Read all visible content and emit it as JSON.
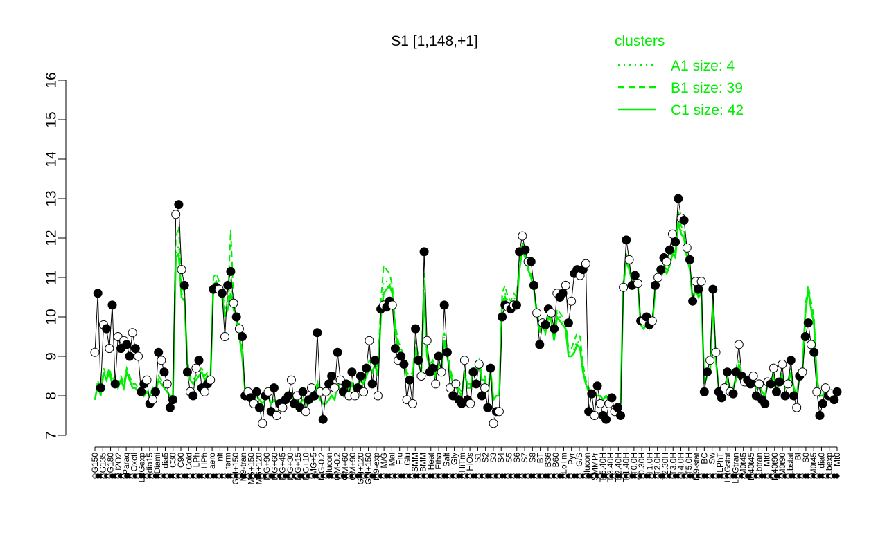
{
  "chart_data": {
    "type": "line",
    "title": "S1 [1,148,+1]",
    "xlabel": "",
    "ylabel": "",
    "ylim": [
      7,
      16
    ],
    "yticks": [
      7,
      8,
      9,
      10,
      11,
      12,
      13,
      14,
      15,
      16
    ],
    "grid": false,
    "legend": {
      "title": "clusters",
      "placement": "top-right",
      "entries": [
        {
          "label": "A1 size: 4",
          "style": "dotted"
        },
        {
          "label": "B1 size: 39",
          "style": "dashed"
        },
        {
          "label": "C1 size: 42",
          "style": "solid"
        }
      ]
    },
    "x_tick_labels": [
      "G150",
      "G135",
      "G180",
      "H2O2",
      "Paraq",
      "Oxctl",
      "LBGexp",
      "dia15",
      "Diami",
      "dia5",
      "C30",
      "C90",
      "Cold",
      "LPh",
      "HPh",
      "aero",
      "nit",
      "ferm",
      "GM+150",
      "M9-tran",
      "MG+150",
      "MG+120",
      "MG+90",
      "MG+60",
      "MG+45",
      "MG+30",
      "MG+15",
      "MG+10",
      "MG+5",
      "MG-0.2",
      "Glucon",
      "GM-0.2",
      "GM+60",
      "GM+90",
      "GM+120",
      "GM+150",
      "M9-exp",
      "M/G",
      "Mal",
      "Fru",
      "Glu",
      "SMM",
      "BMM",
      "Heat",
      "Etha",
      "Salt",
      "Gly",
      "HiTm",
      "HiOs",
      "S1",
      "S2",
      "S3",
      "S4",
      "S5",
      "S6",
      "S7",
      "S8",
      "BT",
      "B36",
      "B60",
      "LoTm",
      "Pyr",
      "G/S",
      "Glucon",
      "SMMPr",
      "T-5.40H",
      "T-3.40H",
      "T-2.40H",
      "T-1.40H",
      "T0.0H",
      "T0.30H",
      "T1.0H",
      "T2.0H",
      "T2.30H",
      "T3.0H",
      "T4.0H",
      "T5.0H",
      "M9-stat",
      "BC",
      "Sw",
      "LPhT",
      "LBGstat",
      "LBGtran",
      "M0t45",
      "M40t45",
      "Lbtran",
      "Mt0",
      "M40t90",
      "M0t90",
      "Lbstat",
      "BI",
      "S0",
      "M0t45",
      "dia0",
      "Lbexp",
      "Mt0"
    ],
    "series": [
      {
        "marker": "circles",
        "values": [
          9.1,
          10.6,
          8.2,
          9.8,
          9.7,
          9.2,
          10.3,
          8.3,
          9.5,
          9.2,
          9.4,
          9.3,
          9.0,
          9.6,
          9.2,
          9.0,
          8.1,
          8.3,
          8.4,
          7.8,
          7.9,
          8.1,
          9.1,
          8.9,
          8.6,
          8.3,
          7.7,
          7.9,
          12.6,
          12.85,
          11.2,
          10.8,
          8.6,
          8.1,
          8.0,
          8.7,
          8.9,
          8.2,
          8.1,
          8.3,
          8.4,
          10.7,
          10.75,
          10.7,
          10.6,
          9.5,
          10.8,
          11.15,
          10.35,
          10.0,
          9.7,
          9.5,
          8.0,
          8.1,
          7.95,
          7.8,
          8.1,
          7.7,
          7.3,
          8.0,
          8.1,
          7.6,
          8.2,
          7.5,
          7.8,
          7.7,
          7.9,
          8.0,
          8.4,
          7.8,
          8.0,
          7.7,
          8.1,
          7.6,
          7.9,
          8.2,
          8.0,
          9.6,
          8.1,
          7.4,
          8.1,
          8.3,
          8.5,
          8.2,
          9.1,
          8.4,
          8.1,
          8.3,
          8.0,
          8.6,
          8.0,
          8.2,
          8.5,
          8.1,
          8.7,
          9.4,
          8.3,
          8.9,
          8.0,
          10.2,
          10.3,
          10.25,
          10.4,
          10.3,
          9.2,
          8.9,
          9.0,
          8.8,
          7.9,
          8.4,
          7.8,
          9.7,
          8.9,
          8.5,
          11.65,
          9.4,
          8.6,
          8.7,
          8.3,
          9.0,
          8.6,
          10.3,
          9.1,
          8.2,
          8.0,
          8.3,
          7.9,
          7.8,
          8.9,
          7.9,
          7.8,
          8.6,
          8.3,
          8.8,
          8.0,
          8.2,
          7.7,
          8.7,
          7.3,
          7.6,
          7.6,
          10.0,
          10.3,
          10.25,
          10.2,
          10.3,
          10.3,
          11.65,
          12.05,
          11.7,
          11.4,
          11.4,
          10.8,
          10.1,
          9.3,
          9.85,
          9.8,
          10.2,
          10.1,
          9.7,
          10.6,
          10.5,
          10.6,
          10.8,
          9.85,
          10.4,
          11.1,
          11.2,
          11.05,
          11.2,
          11.35,
          7.6,
          8.05,
          7.5,
          8.25,
          7.8,
          7.5,
          7.4,
          7.8,
          7.95,
          7.6,
          7.7,
          7.5,
          10.75,
          11.95,
          11.45,
          10.8,
          11.05,
          10.85,
          9.9,
          9.9,
          10.0,
          9.8,
          9.9,
          10.8,
          11.0,
          11.2,
          11.5,
          11.4,
          11.7,
          12.1,
          11.9,
          13.0,
          12.5,
          12.45,
          11.75,
          11.45,
          10.4,
          10.9,
          10.7,
          10.9,
          8.1,
          8.6,
          8.9,
          10.7,
          9.1,
          8.1,
          7.95,
          8.2,
          8.6,
          8.1,
          8.05,
          8.6,
          9.3,
          8.5,
          8.35,
          8.4,
          8.3,
          8.5,
          8.0,
          8.3,
          7.9,
          7.8,
          8.35,
          8.3,
          8.7,
          8.1,
          8.35,
          8.8,
          8.0,
          8.3,
          8.9,
          8.0,
          7.7,
          8.5,
          8.6,
          9.5,
          9.85,
          9.3,
          9.1,
          8.1,
          7.5,
          7.8,
          8.2,
          8.0,
          8.05,
          7.9,
          8.1
        ]
      },
      {
        "name": "",
        "style": "solid",
        "values": [
          7.9,
          8.3,
          8.0,
          8.6,
          8.4,
          8.6,
          8.3,
          8.4,
          8.2,
          8.4,
          8.2,
          8.6,
          8.4,
          8.2,
          8.2,
          8.1,
          8.2,
          8.0,
          8.1,
          8.0,
          8.2,
          8.1,
          8.4,
          8.3,
          8.2,
          8.1,
          8.0,
          8.0,
          11.5,
          11.6,
          10.5,
          10.4,
          8.8,
          8.4,
          8.3,
          8.4,
          8.5,
          8.6,
          8.4,
          8.5,
          8.4,
          10.8,
          10.9,
          10.7,
          10.5,
          10.0,
          10.2,
          10.6,
          10.2,
          9.9,
          9.5,
          9.0,
          8.1,
          8.0,
          8.0,
          8.0,
          8.0,
          7.9,
          7.8,
          7.9,
          8.0,
          7.8,
          7.9,
          7.8,
          7.8,
          7.8,
          7.9,
          7.9,
          8.0,
          7.8,
          7.9,
          7.8,
          7.9,
          7.8,
          7.8,
          7.9,
          7.9,
          8.3,
          7.9,
          7.8,
          7.8,
          7.9,
          8.0,
          7.9,
          8.3,
          8.1,
          8.0,
          8.2,
          8.1,
          8.3,
          8.1,
          8.2,
          8.4,
          8.3,
          8.5,
          8.7,
          8.6,
          8.8,
          8.5,
          10.0,
          10.6,
          10.7,
          10.8,
          10.6,
          9.6,
          9.2,
          9.0,
          8.9,
          8.5,
          8.4,
          8.5,
          9.2,
          8.8,
          8.6,
          10.6,
          9.0,
          8.7,
          8.8,
          8.5,
          8.7,
          8.6,
          9.4,
          9.0,
          8.6,
          8.3,
          8.3,
          8.1,
          8.0,
          8.6,
          8.2,
          8.2,
          8.6,
          8.6,
          8.8,
          8.4,
          8.4,
          8.1,
          8.6,
          7.9,
          8.0,
          8.0,
          10.4,
          10.5,
          10.3,
          10.2,
          10.4,
          10.3,
          11.2,
          11.7,
          11.5,
          11.2,
          11.0,
          10.7,
          10.1,
          9.6,
          9.8,
          9.6,
          10.0,
          9.9,
          9.4,
          10.0,
          9.9,
          9.8,
          9.7,
          9.0,
          9.0,
          9.1,
          9.3,
          9.2,
          8.6,
          8.3,
          8.1,
          8.1,
          8.0,
          8.0,
          8.0,
          7.9,
          8.0,
          7.9,
          7.8,
          7.7,
          7.7,
          7.8,
          10.8,
          11.4,
          11.2,
          10.9,
          11.0,
          10.8,
          9.8,
          9.7,
          9.8,
          9.7,
          9.8,
          10.7,
          10.9,
          11.0,
          11.2,
          11.1,
          11.3,
          11.6,
          11.5,
          12.4,
          12.1,
          12.0,
          11.5,
          11.2,
          10.4,
          10.7,
          10.5,
          10.6,
          8.3,
          8.5,
          8.6,
          10.4,
          8.9,
          8.2,
          8.1,
          8.2,
          8.4,
          8.2,
          8.2,
          8.4,
          8.8,
          8.4,
          8.3,
          8.3,
          8.3,
          8.4,
          8.2,
          8.3,
          8.1,
          8.0,
          8.3,
          8.3,
          8.5,
          8.2,
          8.3,
          8.5,
          8.2,
          8.3,
          8.6,
          8.2,
          8.0,
          8.5,
          8.6,
          10.1,
          10.7,
          10.2,
          9.8,
          8.4,
          8.0,
          8.0,
          8.2,
          8.0,
          8.0,
          8.0,
          8.0
        ]
      },
      {
        "name": "",
        "style": "dashed",
        "values": [
          7.9,
          8.4,
          8.0,
          8.7,
          8.5,
          8.7,
          8.4,
          8.5,
          8.3,
          8.5,
          8.3,
          8.7,
          8.5,
          8.3,
          8.3,
          8.2,
          8.2,
          8.1,
          8.1,
          8.0,
          8.2,
          8.1,
          8.5,
          8.4,
          8.2,
          8.1,
          8.0,
          8.0,
          12.0,
          12.3,
          10.8,
          10.6,
          8.9,
          8.5,
          8.4,
          8.5,
          8.6,
          8.7,
          8.5,
          8.6,
          8.4,
          11.0,
          11.1,
          10.9,
          10.7,
          10.2,
          10.4,
          12.2,
          10.5,
          10.1,
          9.8,
          9.2,
          8.1,
          8.0,
          8.0,
          8.0,
          8.0,
          7.9,
          7.8,
          7.9,
          8.0,
          7.8,
          7.9,
          7.8,
          7.8,
          7.8,
          7.9,
          7.9,
          8.0,
          7.8,
          7.9,
          7.8,
          7.9,
          7.8,
          7.8,
          7.9,
          7.9,
          8.4,
          7.9,
          7.8,
          7.8,
          7.9,
          8.0,
          7.9,
          8.4,
          8.2,
          8.0,
          8.3,
          8.1,
          8.4,
          8.2,
          8.3,
          8.5,
          8.4,
          8.7,
          8.9,
          8.8,
          9.0,
          8.7,
          10.4,
          11.3,
          11.2,
          11.1,
          10.8,
          9.8,
          9.4,
          9.2,
          9.0,
          8.6,
          8.5,
          8.6,
          9.4,
          9.0,
          8.7,
          11.1,
          9.2,
          8.8,
          8.9,
          8.6,
          8.8,
          8.7,
          9.6,
          9.2,
          8.7,
          8.4,
          8.4,
          8.2,
          8.1,
          8.7,
          8.3,
          8.3,
          8.7,
          8.7,
          8.9,
          8.5,
          8.5,
          8.2,
          8.7,
          7.9,
          8.0,
          8.0,
          10.6,
          10.8,
          10.5,
          10.4,
          10.6,
          10.5,
          11.4,
          11.9,
          11.6,
          11.3,
          11.1,
          10.8,
          10.2,
          9.7,
          9.9,
          9.7,
          10.1,
          10.0,
          9.5,
          10.2,
          10.1,
          10.0,
          9.9,
          9.2,
          9.2,
          9.4,
          9.6,
          9.5,
          8.8,
          8.4,
          8.2,
          8.1,
          8.0,
          8.0,
          8.0,
          7.9,
          8.0,
          7.9,
          7.8,
          7.7,
          7.7,
          7.8,
          10.9,
          11.6,
          11.3,
          11.0,
          11.1,
          10.9,
          9.9,
          9.8,
          9.9,
          9.8,
          9.9,
          10.8,
          11.0,
          11.1,
          11.3,
          11.2,
          11.4,
          11.8,
          11.6,
          12.7,
          12.3,
          12.2,
          11.6,
          11.3,
          10.5,
          10.8,
          10.6,
          10.7,
          8.3,
          8.6,
          8.7,
          10.6,
          9.0,
          8.2,
          8.1,
          8.2,
          8.5,
          8.2,
          8.2,
          8.5,
          8.9,
          8.5,
          8.3,
          8.4,
          8.3,
          8.5,
          8.2,
          8.3,
          8.1,
          8.0,
          8.4,
          8.3,
          8.6,
          8.2,
          8.4,
          8.6,
          8.2,
          8.4,
          8.7,
          8.2,
          8.0,
          8.6,
          8.7,
          10.3,
          10.8,
          10.4,
          10.0,
          8.5,
          8.0,
          8.1,
          8.2,
          8.0,
          8.0,
          8.0,
          8.0
        ]
      },
      {
        "name": "",
        "style": "dotted",
        "values": [
          7.9,
          8.3,
          8.0,
          8.6,
          8.4,
          8.6,
          8.3,
          8.4,
          8.2,
          8.4,
          8.2,
          8.6,
          8.4,
          8.2,
          8.2,
          8.1,
          8.2,
          8.0,
          8.1,
          8.0,
          8.2,
          8.1,
          8.4,
          8.3,
          8.2,
          8.1,
          8.0,
          8.0,
          11.6,
          11.8,
          10.6,
          10.5,
          8.8,
          8.4,
          8.3,
          8.4,
          8.5,
          8.6,
          8.4,
          8.5,
          8.4,
          10.9,
          10.9,
          10.8,
          10.6,
          10.1,
          10.3,
          11.0,
          10.3,
          10.0,
          9.6,
          9.1,
          8.1,
          8.0,
          8.0,
          8.0,
          8.0,
          7.9,
          7.8,
          7.9,
          8.0,
          7.8,
          7.9,
          7.8,
          7.8,
          7.8,
          7.9,
          7.9,
          8.0,
          7.8,
          7.9,
          7.8,
          7.9,
          7.8,
          7.8,
          7.9,
          7.9,
          8.3,
          7.9,
          7.8,
          7.8,
          7.9,
          8.0,
          7.9,
          8.3,
          8.1,
          8.0,
          8.2,
          8.1,
          8.3,
          8.1,
          8.2,
          8.4,
          8.3,
          8.6,
          8.8,
          8.7,
          8.9,
          8.6,
          10.2,
          10.9,
          10.9,
          10.9,
          10.7,
          9.7,
          9.3,
          9.1,
          8.9,
          8.5,
          8.4,
          8.5,
          9.3,
          8.9,
          8.6,
          10.8,
          9.1,
          8.7,
          8.8,
          8.5,
          8.7,
          8.6,
          9.5,
          9.1,
          8.6,
          8.3,
          8.3,
          8.1,
          8.0,
          8.6,
          8.2,
          8.2,
          8.6,
          8.6,
          8.8,
          8.4,
          8.4,
          8.1,
          8.6,
          7.9,
          8.0,
          8.0,
          10.5,
          10.6,
          10.4,
          10.3,
          10.5,
          10.4,
          11.3,
          11.8,
          11.5,
          11.2,
          11.0,
          10.7,
          10.1,
          9.6,
          9.8,
          9.6,
          10.0,
          9.9,
          9.4,
          10.1,
          10.0,
          9.9,
          9.8,
          9.1,
          9.1,
          9.2,
          9.4,
          9.3,
          8.7,
          8.3,
          8.1,
          8.1,
          8.0,
          8.0,
          8.0,
          7.9,
          8.0,
          7.9,
          7.8,
          7.7,
          7.7,
          7.8,
          10.8,
          11.5,
          11.2,
          10.9,
          11.0,
          10.8,
          9.8,
          9.7,
          9.8,
          9.7,
          9.8,
          10.7,
          10.9,
          11.0,
          11.2,
          11.1,
          11.3,
          11.7,
          11.5,
          12.5,
          12.2,
          12.1,
          11.5,
          11.2,
          10.4,
          10.7,
          10.5,
          10.6,
          8.3,
          8.5,
          8.6,
          10.5,
          8.9,
          8.2,
          8.1,
          8.2,
          8.4,
          8.2,
          8.2,
          8.4,
          8.8,
          8.4,
          8.3,
          8.3,
          8.3,
          8.4,
          8.2,
          8.3,
          8.1,
          8.0,
          8.3,
          8.3,
          8.5,
          8.2,
          8.3,
          8.5,
          8.2,
          8.3,
          8.6,
          8.2,
          8.0,
          8.5,
          8.6,
          10.2,
          10.7,
          10.3,
          9.9,
          8.4,
          8.0,
          8.0,
          8.2,
          8.0,
          8.0,
          8.0,
          8.0
        ]
      }
    ]
  },
  "colors": {
    "cluster_line": "#00ee00",
    "data_line": "#000000",
    "axis": "#000000",
    "legend_text": "#00ee00"
  }
}
